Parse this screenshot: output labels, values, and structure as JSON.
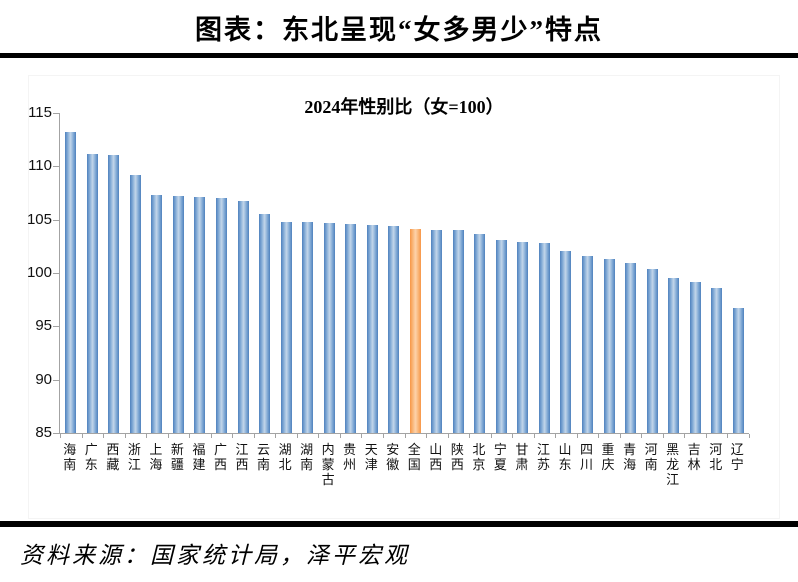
{
  "page": {
    "title": "图表：东北呈现“女多男少”特点",
    "source": "资料来源：国家统计局，泽平宏观"
  },
  "chart_data": {
    "type": "bar",
    "title": "2024年性别比（女=100）",
    "categories": [
      "海南",
      "广东",
      "西藏",
      "浙江",
      "上海",
      "新疆",
      "福建",
      "广西",
      "江西",
      "云南",
      "湖北",
      "湖南",
      "内蒙古",
      "贵州",
      "天津",
      "安徽",
      "全国",
      "山西",
      "陕西",
      "北京",
      "宁夏",
      "甘肃",
      "江苏",
      "山东",
      "四川",
      "重庆",
      "青海",
      "河南",
      "黑龙江",
      "吉林",
      "河北",
      "辽宁"
    ],
    "values": [
      113.2,
      111.2,
      111.1,
      109.2,
      107.3,
      107.2,
      107.1,
      107.0,
      106.8,
      105.5,
      104.8,
      104.8,
      104.7,
      104.6,
      104.5,
      104.4,
      104.1,
      104.0,
      104.0,
      103.7,
      103.1,
      102.9,
      102.8,
      102.1,
      101.6,
      101.3,
      100.9,
      100.4,
      99.5,
      99.2,
      98.6,
      96.7
    ],
    "highlight_category": "全国",
    "highlight_index": 16,
    "xlabel": "",
    "ylabel": "",
    "ylim": [
      85,
      115
    ],
    "yticks": [
      85,
      90,
      95,
      100,
      105,
      110,
      115
    ],
    "grid": false,
    "legend": "none",
    "colors": {
      "bar": "#4f81bd",
      "bar_light_center": "#c3d6ea",
      "highlight": "#f79646",
      "highlight_light_center": "#fdd3ab",
      "axis": "#a3a3a3",
      "divider": "#000000",
      "background": "#ffffff"
    }
  }
}
